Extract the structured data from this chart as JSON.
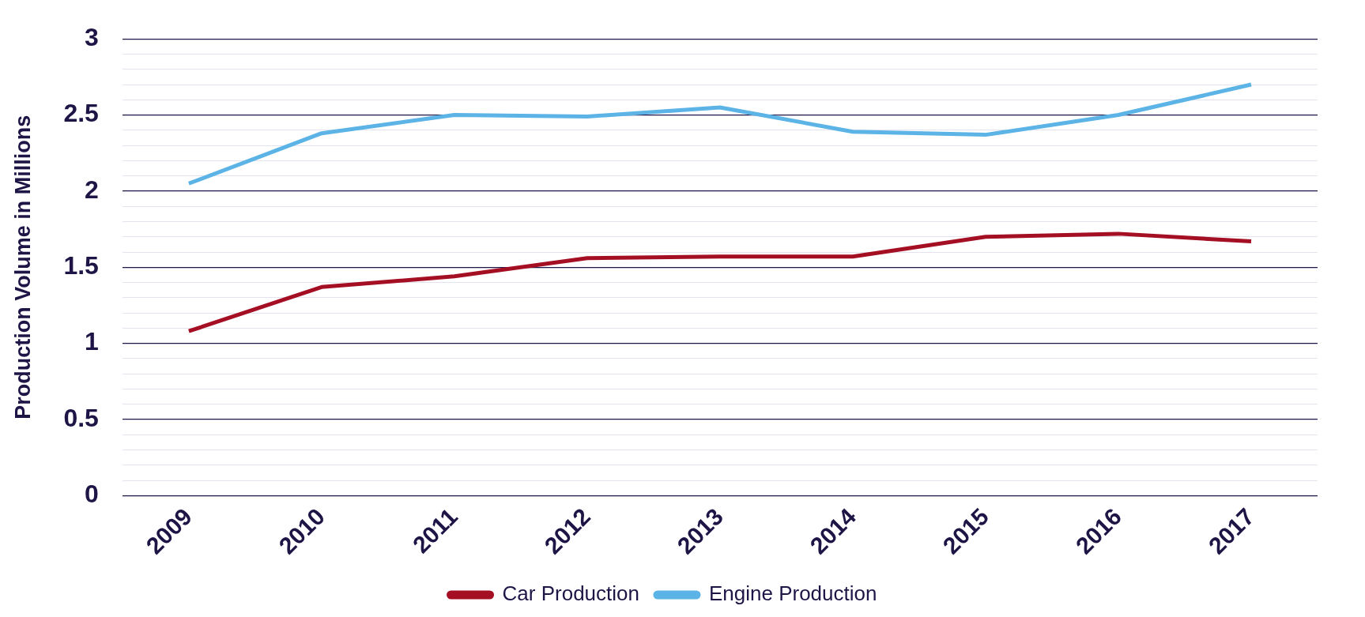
{
  "chart_data": {
    "type": "line",
    "ylabel": "Production Volume in Millions",
    "categories": [
      "2009",
      "2010",
      "2011",
      "2012",
      "2013",
      "2014",
      "2015",
      "2016",
      "2017"
    ],
    "series": [
      {
        "name": "Car Production",
        "color": "#a50f24",
        "values": [
          1.08,
          1.37,
          1.44,
          1.56,
          1.57,
          1.57,
          1.7,
          1.72,
          1.67
        ]
      },
      {
        "name": "Engine Production",
        "color": "#5bb3e6",
        "values": [
          2.05,
          2.38,
          2.5,
          2.49,
          2.55,
          2.39,
          2.37,
          2.5,
          2.7
        ]
      }
    ],
    "ylim": [
      0,
      3
    ],
    "yticks": [
      0,
      {
        "value": 0.1,
        "label": null
      },
      {
        "value": 0.2,
        "label": null
      },
      {
        "value": 0.3,
        "label": null
      },
      {
        "value": 0.4,
        "label": null
      },
      0.5,
      {
        "value": 0.6,
        "label": null
      },
      {
        "value": 0.7,
        "label": null
      },
      {
        "value": 0.8,
        "label": null
      },
      {
        "value": 0.9,
        "label": null
      },
      1,
      {
        "value": 1.1,
        "label": null
      },
      {
        "value": 1.2,
        "label": null
      },
      {
        "value": 1.3,
        "label": null
      },
      {
        "value": 1.4,
        "label": null
      },
      1.5,
      {
        "value": 1.6,
        "label": null
      },
      {
        "value": 1.7,
        "label": null
      },
      {
        "value": 1.8,
        "label": null
      },
      {
        "value": 1.9,
        "label": null
      },
      2,
      {
        "value": 2.1,
        "label": null
      },
      {
        "value": 2.2,
        "label": null
      },
      {
        "value": 2.3,
        "label": null
      },
      {
        "value": 2.4,
        "label": null
      },
      2.5,
      {
        "value": 2.6,
        "label": null
      },
      {
        "value": 2.7,
        "label": null
      },
      {
        "value": 2.8,
        "label": null
      },
      {
        "value": 2.9,
        "label": null
      },
      3
    ],
    "grid": "y",
    "legend": "bottom",
    "marker": "none",
    "line_style": "solid"
  }
}
